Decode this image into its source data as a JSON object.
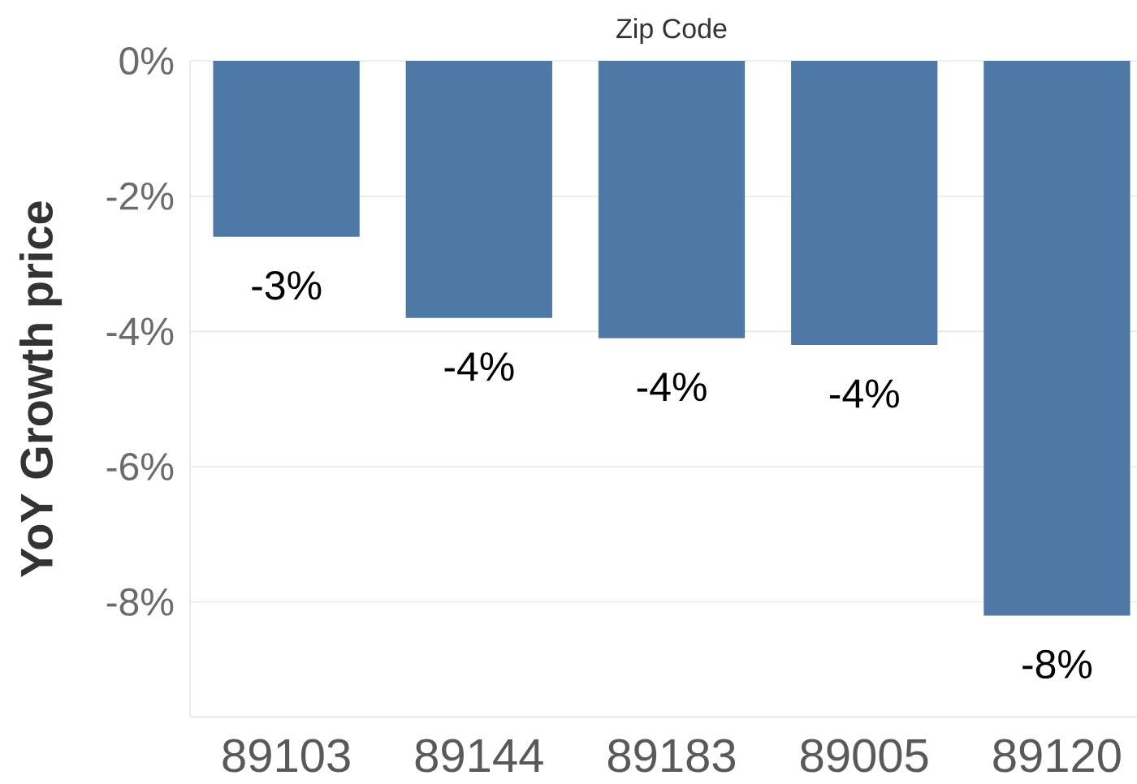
{
  "chart_data": {
    "type": "bar",
    "title": "Zip Code",
    "ylabel": "YoY Growth price",
    "categories": [
      "89103",
      "89144",
      "89183",
      "89005",
      "89120"
    ],
    "values": [
      -2.6,
      -3.8,
      -4.1,
      -4.2,
      -8.2
    ],
    "value_labels": [
      "-3%",
      "-4%",
      "-4%",
      "-4%",
      "-8%"
    ],
    "color": "#4e79a7",
    "ylim": [
      -9.7,
      0
    ],
    "yticks": [
      {
        "value": 0,
        "label": "0%"
      },
      {
        "value": -2,
        "label": "-2%"
      },
      {
        "value": -4,
        "label": "-4%"
      },
      {
        "value": -6,
        "label": "-6%"
      },
      {
        "value": -8,
        "label": "-8%"
      }
    ],
    "grid": "y"
  }
}
